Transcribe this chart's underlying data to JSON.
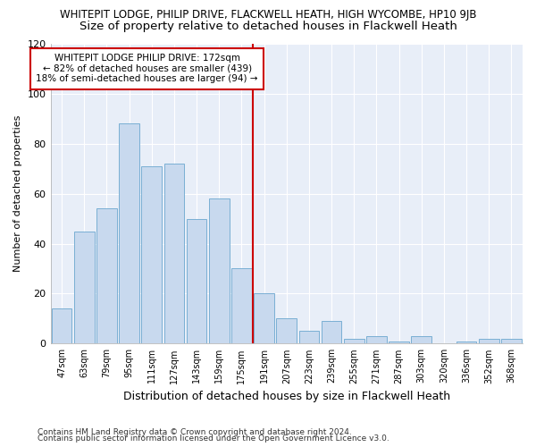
{
  "title": "WHITEPIT LODGE, PHILIP DRIVE, FLACKWELL HEATH, HIGH WYCOMBE, HP10 9JB",
  "subtitle": "Size of property relative to detached houses in Flackwell Heath",
  "xlabel": "Distribution of detached houses by size in Flackwell Heath",
  "ylabel": "Number of detached properties",
  "footer1": "Contains HM Land Registry data © Crown copyright and database right 2024.",
  "footer2": "Contains public sector information licensed under the Open Government Licence v3.0.",
  "categories": [
    "47sqm",
    "63sqm",
    "79sqm",
    "95sqm",
    "111sqm",
    "127sqm",
    "143sqm",
    "159sqm",
    "175sqm",
    "191sqm",
    "207sqm",
    "223sqm",
    "239sqm",
    "255sqm",
    "271sqm",
    "287sqm",
    "303sqm",
    "320sqm",
    "336sqm",
    "352sqm",
    "368sqm"
  ],
  "values": [
    14,
    45,
    54,
    88,
    71,
    72,
    50,
    58,
    30,
    20,
    10,
    5,
    9,
    2,
    3,
    1,
    3,
    0,
    1,
    2,
    2
  ],
  "bar_color": "#c8d9ee",
  "bar_edge_color": "#7aafd4",
  "vline_color": "#cc0000",
  "annotation_title": "WHITEPIT LODGE PHILIP DRIVE: 172sqm",
  "annotation_line1": "← 82% of detached houses are smaller (439)",
  "annotation_line2": "18% of semi-detached houses are larger (94) →",
  "annotation_box_color": "#ffffff",
  "annotation_box_edge": "#cc0000",
  "ylim": [
    0,
    120
  ],
  "yticks": [
    0,
    20,
    40,
    60,
    80,
    100,
    120
  ],
  "bg_color": "#ffffff",
  "plot_bg_color": "#e8eef8",
  "grid_color": "#ffffff",
  "title_fontsize": 8.5,
  "subtitle_fontsize": 9.5
}
